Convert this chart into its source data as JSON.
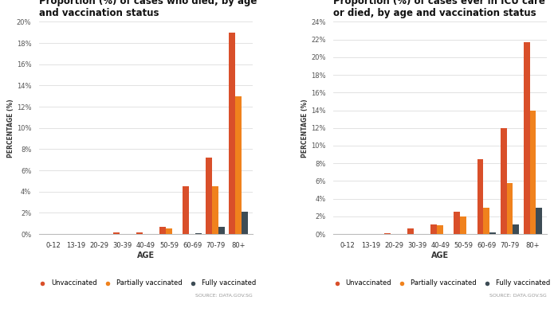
{
  "chart1": {
    "title": "Proportion (%) of cases who died, by age\nand vaccination status",
    "categories": [
      "0-12",
      "13-19",
      "20-29",
      "30-39",
      "40-49",
      "50-59",
      "60-69",
      "70-79",
      "80+"
    ],
    "unvaccinated": [
      0,
      0,
      0,
      0.15,
      0.15,
      0.7,
      4.5,
      7.2,
      19.0
    ],
    "partially_vacc": [
      0,
      0,
      0,
      0,
      0,
      0.5,
      0,
      4.5,
      13.0
    ],
    "fully_vacc": [
      0,
      0,
      0,
      0,
      0,
      0,
      0.1,
      0.7,
      2.1
    ],
    "ylim": [
      0,
      20
    ],
    "yticks": [
      0,
      2,
      4,
      6,
      8,
      10,
      12,
      14,
      16,
      18,
      20
    ],
    "ytick_labels": [
      "0%",
      "2%",
      "4%",
      "6%",
      "8%",
      "10%",
      "12%",
      "14%",
      "16%",
      "18%",
      "20%"
    ]
  },
  "chart2": {
    "title": "Proportion (%) of cases ever in ICU care\nor died, by age and vaccination status",
    "categories": [
      "0-12",
      "13-19",
      "20-29",
      "30-39",
      "40-49",
      "50-59",
      "60-69",
      "70-79",
      "80+"
    ],
    "unvaccinated": [
      0,
      0,
      0.1,
      0.6,
      1.1,
      2.5,
      8.5,
      12.0,
      21.7
    ],
    "partially_vacc": [
      0,
      0,
      0,
      0,
      1.0,
      2.0,
      3.0,
      5.8,
      14.0
    ],
    "fully_vacc": [
      0,
      0,
      0,
      0,
      0,
      0,
      0.2,
      1.1,
      3.0
    ],
    "ylim": [
      0,
      24
    ],
    "yticks": [
      0,
      2,
      4,
      6,
      8,
      10,
      12,
      14,
      16,
      18,
      20,
      22,
      24
    ],
    "ytick_labels": [
      "0%",
      "2%",
      "4%",
      "6%",
      "8%",
      "10%",
      "12%",
      "14%",
      "16%",
      "18%",
      "20%",
      "22%",
      "24%"
    ]
  },
  "colors": {
    "unvaccinated": "#D94F2A",
    "partially_vacc": "#F0821D",
    "fully_vacc": "#3D4C55"
  },
  "legend_labels": [
    "Unvaccinated",
    "Partially vaccinated",
    "Fully vaccinated"
  ],
  "source": "SOURCE: DATA.GOV.SG",
  "background_color": "#ffffff",
  "bar_width": 0.27,
  "ylabel": "PERCENTAGE (%)",
  "xlabel": "AGE"
}
